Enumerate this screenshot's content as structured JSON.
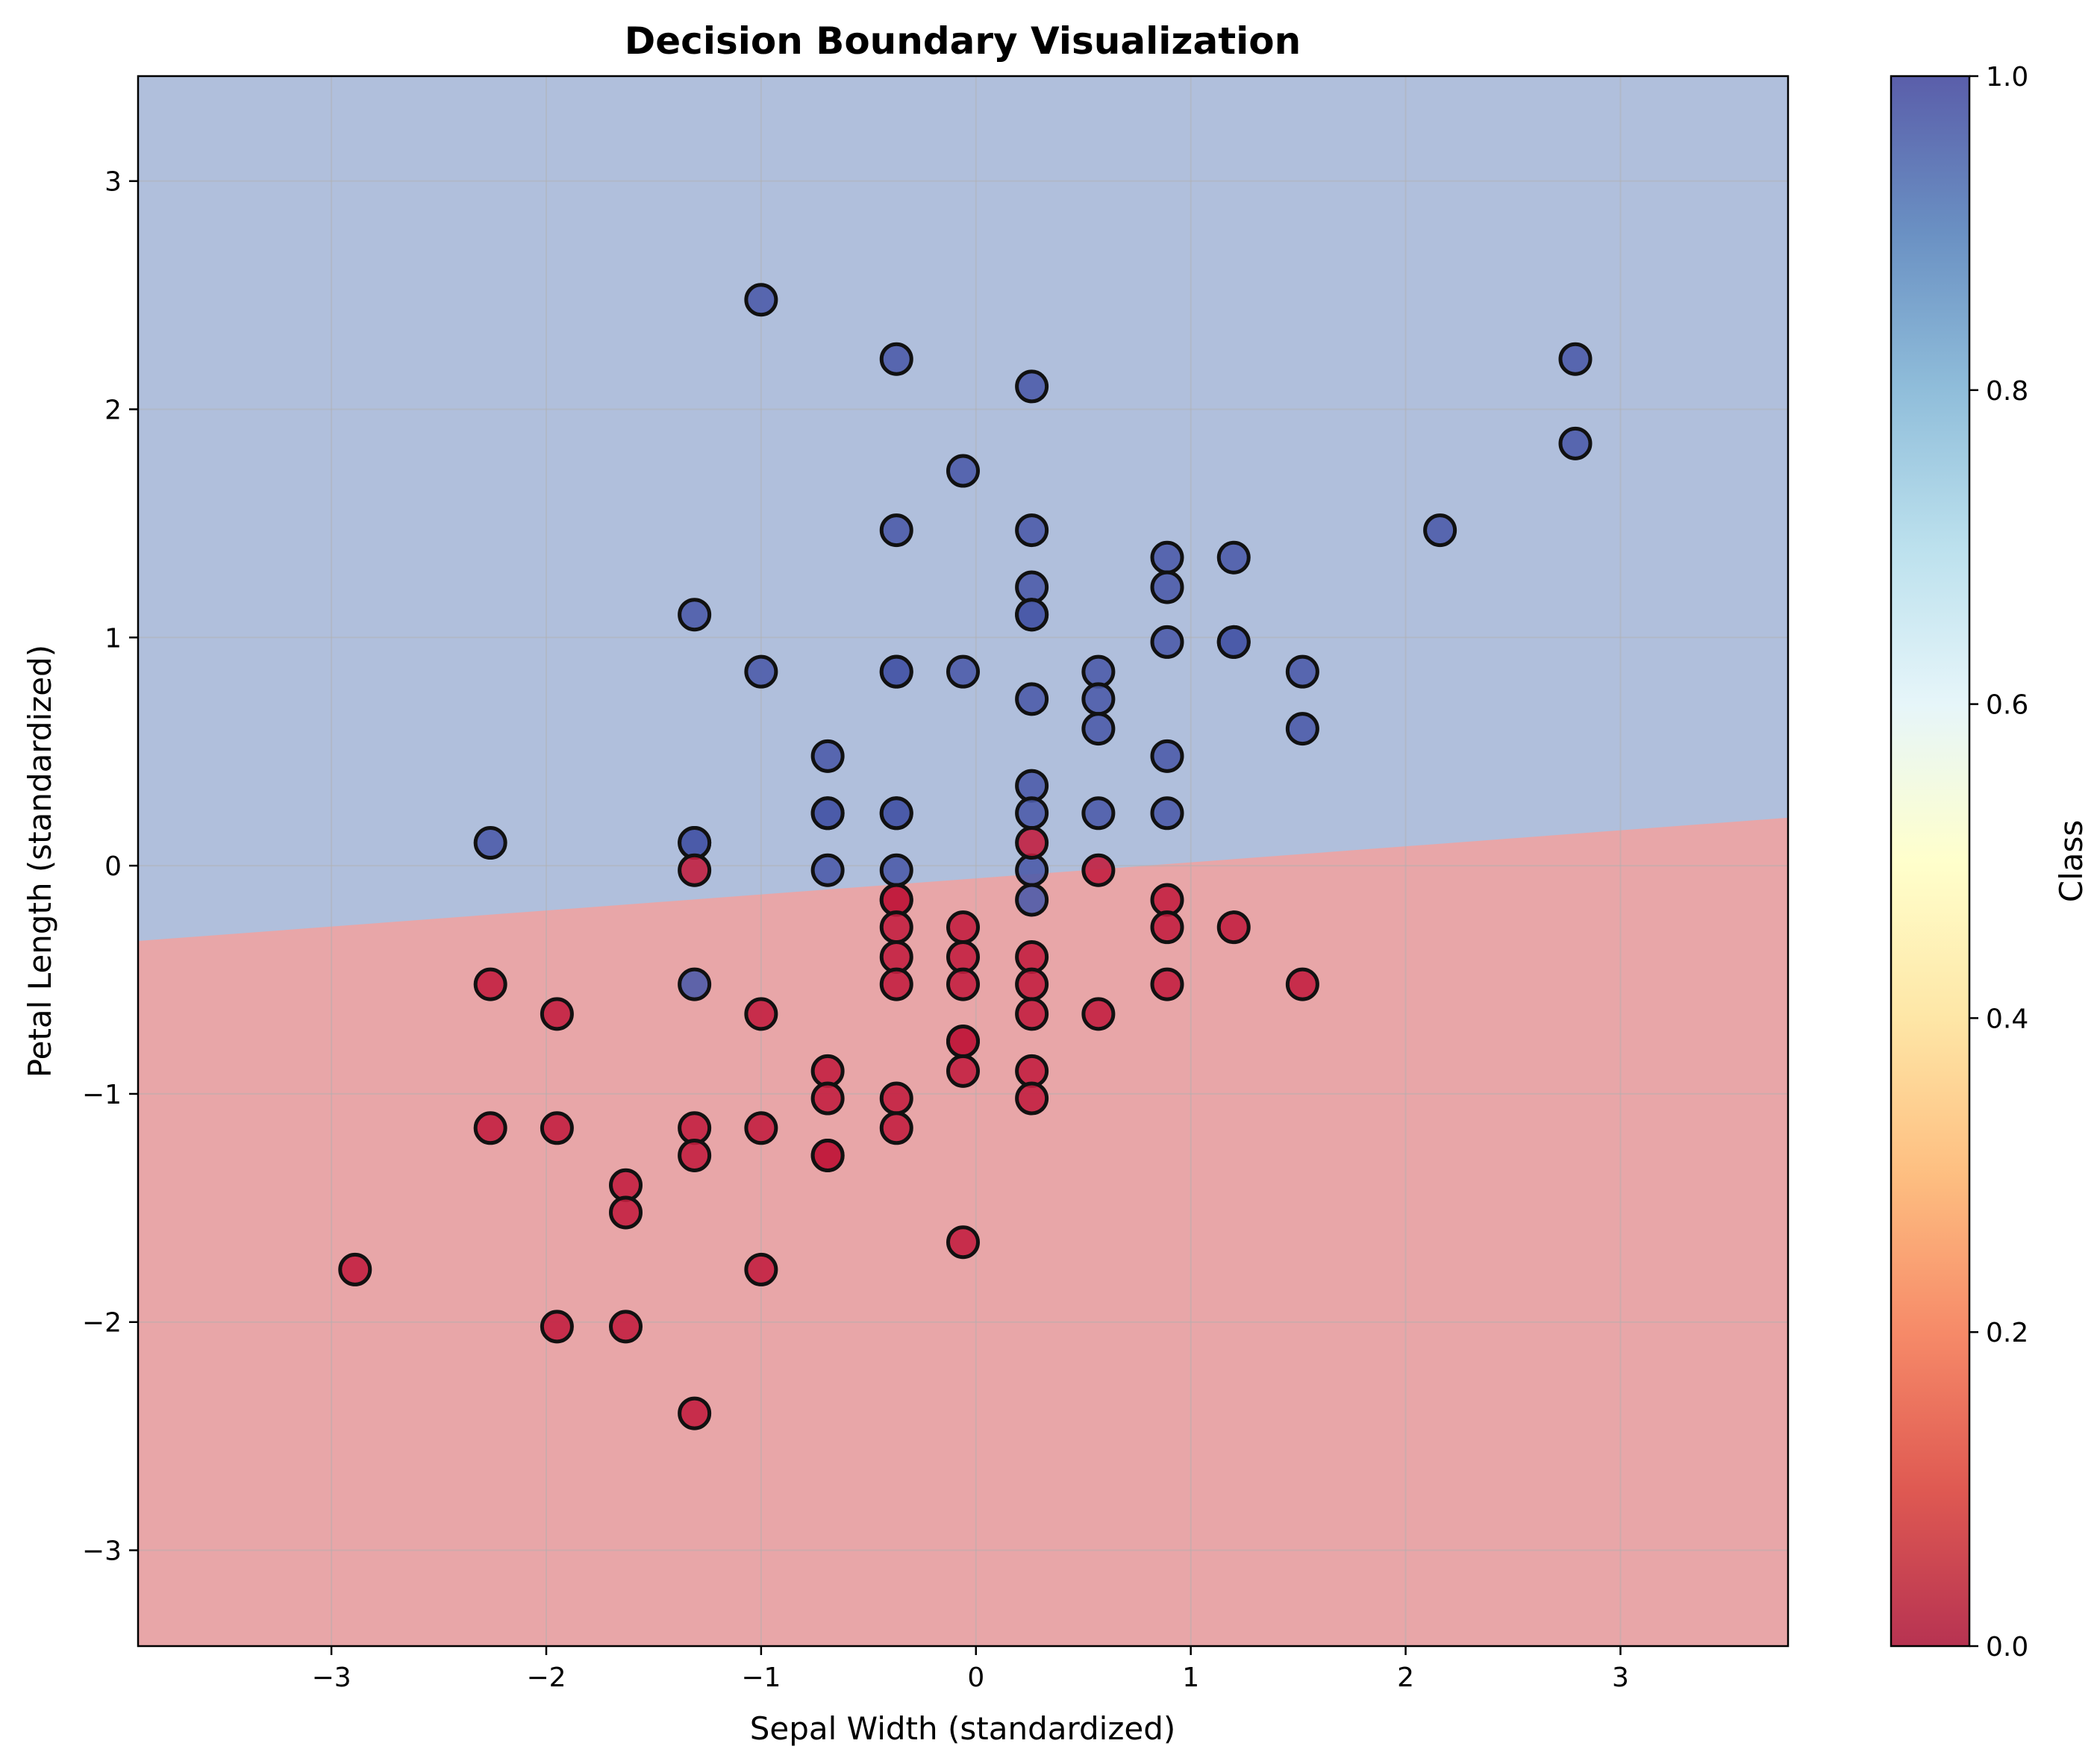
{
  "chart_data": {
    "type": "scatter",
    "title": "Decision Boundary Visualization",
    "xlabel": "Sepal Width (standardized)",
    "ylabel": "Petal Length (standardized)",
    "xlim": [
      -3.9,
      3.78
    ],
    "ylim": [
      -3.42,
      3.46
    ],
    "x_ticks": [
      -3,
      -2,
      -1,
      0,
      1,
      2,
      3
    ],
    "y_ticks": [
      -3,
      -2,
      -1,
      0,
      1,
      2,
      3
    ],
    "x_tick_labels": [
      "−3",
      "−2",
      "−1",
      "0",
      "1",
      "2",
      "3"
    ],
    "y_tick_labels": [
      "−3",
      "−2",
      "−1",
      "0",
      "1",
      "2",
      "3"
    ],
    "grid": true,
    "colormap": "RdYlBu",
    "colorbar": {
      "label": "Class",
      "range": [
        0.0,
        1.0
      ],
      "ticks": [
        0.0,
        0.2,
        0.4,
        0.6,
        0.8,
        1.0
      ],
      "tick_labels": [
        "0.0",
        "0.2",
        "0.4",
        "0.6",
        "0.8",
        "1.0"
      ],
      "stops": [
        "#a50026",
        "#d73027",
        "#f46d43",
        "#fdae61",
        "#fee090",
        "#ffffbf",
        "#e0f3f8",
        "#abd9e9",
        "#74add1",
        "#4575b4",
        "#313695"
      ]
    },
    "regions": {
      "class_1_color": "#b0bfdc",
      "class_0_color": "#e8a6a8",
      "boundary": {
        "x": [
          -3.9,
          3.78
        ],
        "y": [
          -0.33,
          0.21
        ]
      }
    },
    "colors": {
      "class_0": "#c21d3e",
      "class_1": "#4a5aa8"
    },
    "series": [
      {
        "class": 1,
        "x": [
          -1.0,
          -0.37,
          0.26,
          2.79,
          2.79,
          -0.06,
          -0.37,
          0.26,
          2.16,
          0.89,
          1.2,
          0.89,
          0.26,
          -1.31,
          0.26,
          0.26,
          0.89,
          1.2,
          1.2,
          -1.0,
          -0.37,
          -0.37,
          -0.06,
          0.57,
          1.52,
          0.26,
          0.57,
          0.57,
          1.52,
          -0.69,
          0.89,
          0.26,
          -2.26,
          -0.69,
          -0.69,
          -0.37,
          -0.37,
          0.26,
          0.57,
          0.89,
          -1.31,
          -1.31,
          -0.69,
          -0.37,
          0.26,
          0.26,
          -1.31
        ],
        "y": [
          2.48,
          2.22,
          2.1,
          2.22,
          1.85,
          1.73,
          1.47,
          1.47,
          1.47,
          1.35,
          1.35,
          1.22,
          1.22,
          1.1,
          1.1,
          1.1,
          0.98,
          0.98,
          0.98,
          0.85,
          0.85,
          0.85,
          0.85,
          0.85,
          0.85,
          0.73,
          0.73,
          0.6,
          0.6,
          0.48,
          0.48,
          0.35,
          0.1,
          0.23,
          0.23,
          0.23,
          0.23,
          0.23,
          0.23,
          0.23,
          0.1,
          0.1,
          -0.02,
          -0.02,
          -0.02,
          -0.15,
          -0.52
        ]
      },
      {
        "class": 0,
        "x": [
          0.26,
          -1.31,
          0.57,
          -0.37,
          -0.37,
          0.89,
          -0.37,
          -0.06,
          0.89,
          1.2,
          -0.37,
          -0.06,
          0.26,
          -2.26,
          -0.37,
          -0.06,
          0.26,
          0.89,
          1.52,
          -1.95,
          -1.0,
          0.26,
          0.57,
          -0.06,
          -0.06,
          -0.69,
          -0.06,
          0.26,
          -0.69,
          -0.37,
          0.26,
          -2.26,
          -1.95,
          -1.31,
          -1.0,
          -0.37,
          -1.31,
          -0.69,
          -0.69,
          -1.63,
          -1.63,
          -0.06,
          -2.89,
          -1.0,
          -1.95,
          -1.63,
          -1.31
        ],
        "y": [
          0.1,
          -0.02,
          -0.02,
          -0.15,
          -0.15,
          -0.15,
          -0.27,
          -0.27,
          -0.27,
          -0.27,
          -0.4,
          -0.4,
          -0.4,
          -0.52,
          -0.52,
          -0.52,
          -0.52,
          -0.52,
          -0.52,
          -0.65,
          -0.65,
          -0.65,
          -0.65,
          -0.77,
          -0.77,
          -0.9,
          -0.9,
          -0.9,
          -1.02,
          -1.02,
          -1.02,
          -1.15,
          -1.15,
          -1.15,
          -1.15,
          -1.15,
          -1.27,
          -1.27,
          -1.27,
          -1.4,
          -1.52,
          -1.65,
          -1.77,
          -1.77,
          -2.02,
          -2.02,
          -2.4
        ]
      }
    ]
  }
}
